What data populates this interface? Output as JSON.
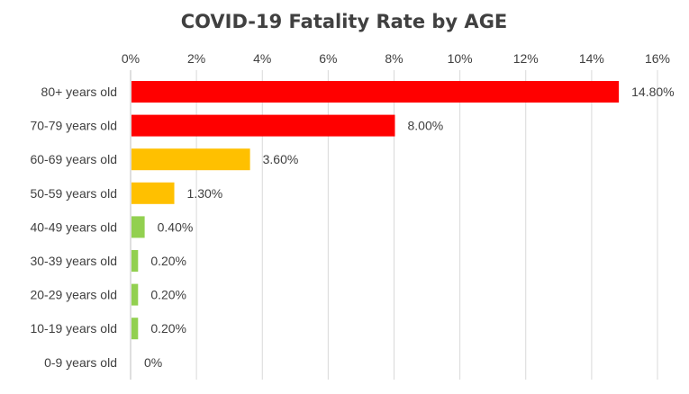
{
  "chart_data": {
    "type": "bar",
    "orientation": "horizontal",
    "title": "COVID-19 Fatality Rate by AGE",
    "xlabel": "",
    "ylabel": "",
    "xlim": [
      0,
      16
    ],
    "x_axis_position": "top",
    "grid": true,
    "x_ticks": [
      0,
      2,
      4,
      6,
      8,
      10,
      12,
      14,
      16
    ],
    "x_tick_labels": [
      "0%",
      "2%",
      "4%",
      "6%",
      "8%",
      "10%",
      "12%",
      "14%",
      "16%"
    ],
    "categories": [
      "80+ years old",
      "70-79 years old",
      "60-69 years old",
      "50-59 years old",
      "40-49 years old",
      "30-39 years old",
      "20-29 years old",
      "10-19 years old",
      "0-9 years old"
    ],
    "values": [
      14.8,
      8.0,
      3.6,
      1.3,
      0.4,
      0.2,
      0.2,
      0.2,
      0
    ],
    "data_labels": [
      "14.80%",
      "8.00%",
      "3.60%",
      "1.30%",
      "0.40%",
      "0.20%",
      "0.20%",
      "0.20%",
      "0%"
    ],
    "colors": [
      "#ff0000",
      "#ff0000",
      "#ffc000",
      "#ffc000",
      "#92d050",
      "#92d050",
      "#92d050",
      "#92d050",
      "#92d050"
    ]
  }
}
